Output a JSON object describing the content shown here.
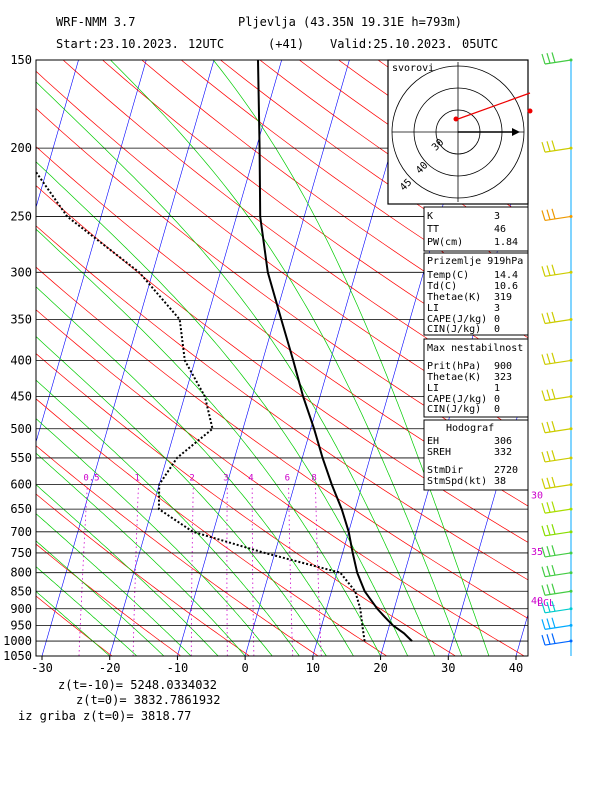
{
  "header": {
    "model": "WRF-NMM 3.7",
    "station": "Pljevlja (43.35N 19.31E  h=793m)",
    "start": "Start:23.10.2023.",
    "start_hour": "12UTC",
    "offset": "(+41)",
    "valid": "Valid:25.10.2023.",
    "valid_hour": "05UTC"
  },
  "chart_data": {
    "type": "line",
    "title": "",
    "xlabel": "",
    "ylabel": "",
    "scale": "skew-T log-p",
    "xlim": [
      -30,
      40
    ],
    "ylim": [
      1050,
      150
    ],
    "x_ticks": [
      "-30",
      "-20",
      "-10",
      "0",
      "10",
      "20",
      "30",
      "40"
    ],
    "x_tick_values": [
      -30,
      -20,
      -10,
      0,
      10,
      20,
      30,
      40
    ],
    "y_ticks": [
      "150",
      "200",
      "250",
      "300",
      "350",
      "400",
      "450",
      "500",
      "550",
      "600",
      "650",
      "700",
      "750",
      "800",
      "850",
      "900",
      "950",
      "1000",
      "1050"
    ],
    "y_tick_values": [
      150,
      200,
      250,
      300,
      350,
      400,
      450,
      500,
      550,
      600,
      650,
      700,
      750,
      800,
      850,
      900,
      950,
      1000,
      1050
    ],
    "mixing_ratio_labels": [
      "0.5",
      "1",
      "2",
      "3",
      "4",
      "6",
      "8"
    ],
    "mixing_ratio_values": [
      0.5,
      1,
      2,
      3,
      4,
      6,
      8
    ],
    "series": [
      {
        "name": "",
        "style": "solid",
        "color": "#000000",
        "points": [
          [
            24.0,
            1000
          ],
          [
            22.5,
            975
          ],
          [
            20.5,
            950
          ],
          [
            19.0,
            925
          ],
          [
            17.5,
            900
          ],
          [
            14.9,
            850
          ],
          [
            13.0,
            800
          ],
          [
            11.5,
            750
          ],
          [
            10.0,
            700
          ],
          [
            8.0,
            650
          ],
          [
            5.5,
            600
          ],
          [
            3.0,
            550
          ],
          [
            0.5,
            500
          ],
          [
            -2.5,
            450
          ],
          [
            -5.5,
            400
          ],
          [
            -9.0,
            350
          ],
          [
            -13.0,
            300
          ],
          [
            -16.5,
            250
          ],
          [
            -19.5,
            200
          ],
          [
            -23.5,
            150
          ]
        ]
      },
      {
        "name": "",
        "style": "dotted",
        "color": "#000000",
        "points": [
          [
            17.0,
            1000
          ],
          [
            16.0,
            950
          ],
          [
            15.0,
            900
          ],
          [
            13.5,
            850
          ],
          [
            10.5,
            800
          ],
          [
            -1.5,
            750
          ],
          [
            -13.0,
            700
          ],
          [
            -19.0,
            650
          ],
          [
            -20.0,
            600
          ],
          [
            -18.5,
            550
          ],
          [
            -14.5,
            500
          ],
          [
            -17.0,
            450
          ],
          [
            -21.5,
            400
          ],
          [
            -24.0,
            350
          ],
          [
            -32.0,
            300
          ],
          [
            -45.0,
            250
          ],
          [
            -55.0,
            200
          ],
          [
            -58.0,
            150
          ]
        ]
      }
    ],
    "wind_profile": [
      {
        "p": 150,
        "color": "#44cc44"
      },
      {
        "p": 200,
        "color": "#cccc00"
      },
      {
        "p": 250,
        "color": "#ee9900"
      },
      {
        "p": 300,
        "color": "#cccc00"
      },
      {
        "p": 350,
        "color": "#cccc00"
      },
      {
        "p": 400,
        "color": "#cccc00"
      },
      {
        "p": 450,
        "color": "#cccc00"
      },
      {
        "p": 500,
        "color": "#cccc00"
      },
      {
        "p": 550,
        "color": "#cccc00"
      },
      {
        "p": 600,
        "color": "#cccc00"
      },
      {
        "p": 650,
        "color": "#aadd00"
      },
      {
        "p": 700,
        "color": "#88dd00"
      },
      {
        "p": 750,
        "color": "#44cc44"
      },
      {
        "p": 800,
        "color": "#44cc44"
      },
      {
        "p": 850,
        "color": "#44cc44"
      },
      {
        "p": 900,
        "color": "#00cccc"
      },
      {
        "p": 950,
        "color": "#00aaff"
      },
      {
        "p": 1000,
        "color": "#0066ff"
      }
    ],
    "side_labels": [
      {
        "text": "30",
        "p": 620
      },
      {
        "text": "35",
        "p": 745
      },
      {
        "text": "40",
        "p": 875
      },
      {
        "text": "LCL",
        "p": 880
      }
    ]
  },
  "hodograph": {
    "label": "svorovi",
    "ring_labels": [
      "30",
      "40",
      "45"
    ]
  },
  "panels": {
    "indices": {
      "rows": [
        {
          "label": "K",
          "value": "3"
        },
        {
          "label": "TT",
          "value": "46"
        },
        {
          "label": "PW(cm)",
          "value": "1.84"
        }
      ]
    },
    "surface": {
      "title": "Prizemlje 919hPa",
      "rows": [
        {
          "label": "Temp(C)",
          "value": "14.4"
        },
        {
          "label": "Td(C)",
          "value": "10.6"
        },
        {
          "label": "Thetae(K)",
          "value": "319"
        },
        {
          "label": "LI",
          "value": "3"
        },
        {
          "label": "CAPE(J/kg)",
          "value": "0"
        },
        {
          "label": "CIN(J/kg)",
          "value": "0"
        }
      ]
    },
    "max_unstable": {
      "title": "Max nestabilnost",
      "rows": [
        {
          "label": "Prit(hPa)",
          "value": "900"
        },
        {
          "label": "Thetae(K)",
          "value": "323"
        },
        {
          "label": "LI",
          "value": "1"
        },
        {
          "label": "CAPE(J/kg)",
          "value": "0"
        },
        {
          "label": "CIN(J/kg)",
          "value": "0"
        }
      ]
    },
    "hodograf": {
      "title": "Hodograf",
      "rows": [
        {
          "label": "EH",
          "value": "306"
        },
        {
          "label": "SREH",
          "value": "332"
        },
        {
          "label": "StmDir",
          "value": "2720"
        },
        {
          "label": "StmSpd(kt)",
          "value": "38"
        }
      ]
    }
  },
  "footer": {
    "line1": "z(t=-10)= 5248.0334032",
    "line2": "z(t=0)=  3832.7861932",
    "line3": "iz griba  z(t=0)= 3818.77"
  },
  "colors": {
    "isobar": "#000000",
    "isotherm": "#0000ff",
    "dry_adiabat": "#ff0000",
    "moist_adiabat": "#00cc00",
    "mixing_ratio": "#cc00cc",
    "wind_axis": "#00aaff"
  }
}
